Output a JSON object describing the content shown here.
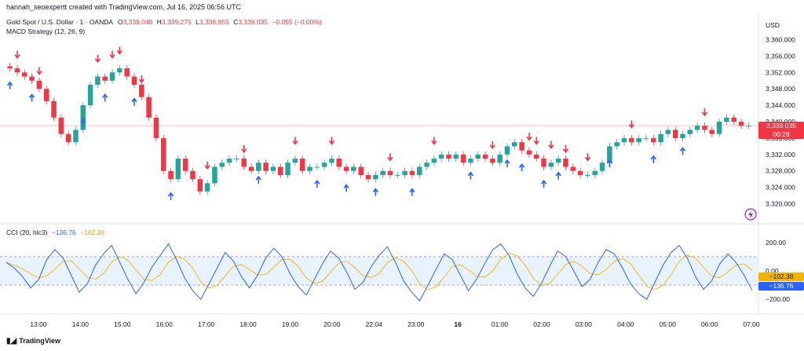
{
  "header": {
    "credit": "hannah_seoexpertt created with TradingView.com, Jul 16, 2025 06:56 UTC"
  },
  "legend": {
    "symbol": "Gold Spot / U.S. Dollar · 1 · OANDA",
    "o_label": "O",
    "o_value": "3,339.040",
    "h_label": "H",
    "h_value": "3,339.275",
    "l_label": "L",
    "l_value": "3,338.955",
    "c_label": "C",
    "c_value": "3,339.035",
    "change": "−0.055 (−0.00%)",
    "strategy": "MACD Strategy (12, 26, 9)",
    "cci_label": "CCI (20, hlc3)",
    "cci_value": "−136.76",
    "cci_ma_value": "−102.38"
  },
  "price_axis": {
    "currency": "USD",
    "last_price": "3,339.035",
    "countdown": "00:28"
  },
  "cci_axis": {
    "ma_badge": "−102.38",
    "cci_badge": "−136.76"
  },
  "footer": {
    "brand": "TradingView"
  },
  "colors": {
    "up": "#26a69a",
    "down": "#f23645",
    "arrow_up": "#2962ff",
    "arrow_down": "#f23645",
    "cci_line": "#2962ff",
    "cci_ma": "#f0b400",
    "band_fill": "#e3efff"
  },
  "chart_data": [
    {
      "type": "candlestick",
      "x_ticks": [
        "13:00",
        "14:00",
        "15:00",
        "16:00",
        "17:00",
        "18:00",
        "19:00",
        "20:00",
        "22:04",
        "23:00",
        "16",
        "01:00",
        "02:00",
        "03:00",
        "04:00",
        "05:00",
        "06:00",
        "07:00"
      ],
      "y_ticks": [
        "3,360.000",
        "3,356.000",
        "3,352.000",
        "3,348.000",
        "3,344.000",
        "3,340.000",
        "3,336.000",
        "3,332.000",
        "3,328.000",
        "3,324.000",
        "3,320.000"
      ],
      "y_range": [
        3318,
        3362
      ],
      "last_price": 3339.035,
      "close_series": [
        3353,
        3352,
        3351,
        3350,
        3348,
        3345,
        3341,
        3337,
        3335,
        3338,
        3344,
        3349,
        3351,
        3350,
        3352,
        3353,
        3351,
        3349,
        3346,
        3341,
        3336,
        3328,
        3326,
        3331,
        3328,
        3326,
        3323,
        3325,
        3329,
        3330,
        3331,
        3331,
        3329,
        3328,
        3330,
        3328,
        3329,
        3327,
        3330,
        3331,
        3328,
        3329,
        3329,
        3330,
        3331,
        3329,
        3328,
        3329,
        3327,
        3326,
        3327,
        3328,
        3327,
        3327,
        3328,
        3327,
        3329,
        3330,
        3331,
        3332,
        3331,
        3332,
        3330,
        3331,
        3332,
        3331,
        3330,
        3332,
        3334,
        3335,
        3333,
        3332,
        3331,
        3329,
        3330,
        3331,
        3329,
        3328,
        3327,
        3327,
        3328,
        3330,
        3334,
        3335,
        3336,
        3335,
        3336,
        3336,
        3335,
        3337,
        3338,
        3336,
        3337,
        3338,
        3339,
        3338,
        3337,
        3340,
        3341,
        3340,
        3339,
        3339
      ],
      "signals_down_idx": [
        1,
        4,
        12,
        14,
        15,
        18,
        27,
        32,
        39,
        44,
        52,
        58,
        66,
        71,
        72,
        74,
        76,
        79,
        85,
        95
      ],
      "signals_up_idx": [
        0,
        3,
        10,
        13,
        17,
        22,
        34,
        42,
        46,
        50,
        55,
        63,
        68,
        70,
        73,
        75,
        82,
        88,
        92
      ],
      "signal_count_visible": "many"
    },
    {
      "type": "line",
      "name": "CCI",
      "y_ticks": [
        "200.00",
        "0.00",
        "−200.00"
      ],
      "y_range": [
        -260,
        260
      ],
      "band": [
        -100,
        100
      ],
      "last_values": {
        "cci": -136.76,
        "ma": -102.38
      },
      "values": [
        60,
        20,
        -40,
        -120,
        -60,
        80,
        150,
        90,
        -30,
        -150,
        -90,
        40,
        120,
        180,
        60,
        -60,
        -160,
        -80,
        30,
        110,
        190,
        80,
        -50,
        -140,
        -200,
        -90,
        20,
        130,
        70,
        -40,
        -120,
        -30,
        90,
        160,
        100,
        -20,
        -110,
        -170,
        -60,
        50,
        140,
        90,
        -10,
        -130,
        -80,
        30,
        110,
        170,
        60,
        -70,
        -150,
        -210,
        -100,
        10,
        120,
        80,
        -30,
        -140,
        -60,
        50,
        150,
        190,
        110,
        -20,
        -120,
        -180,
        -90,
        30,
        140,
        100,
        0,
        -110,
        -60,
        60,
        150,
        120,
        20,
        -90,
        -160,
        -200,
        -80,
        40,
        130,
        180,
        90,
        -40,
        -130,
        -70,
        50,
        120,
        60,
        -30,
        -137
      ]
    }
  ]
}
